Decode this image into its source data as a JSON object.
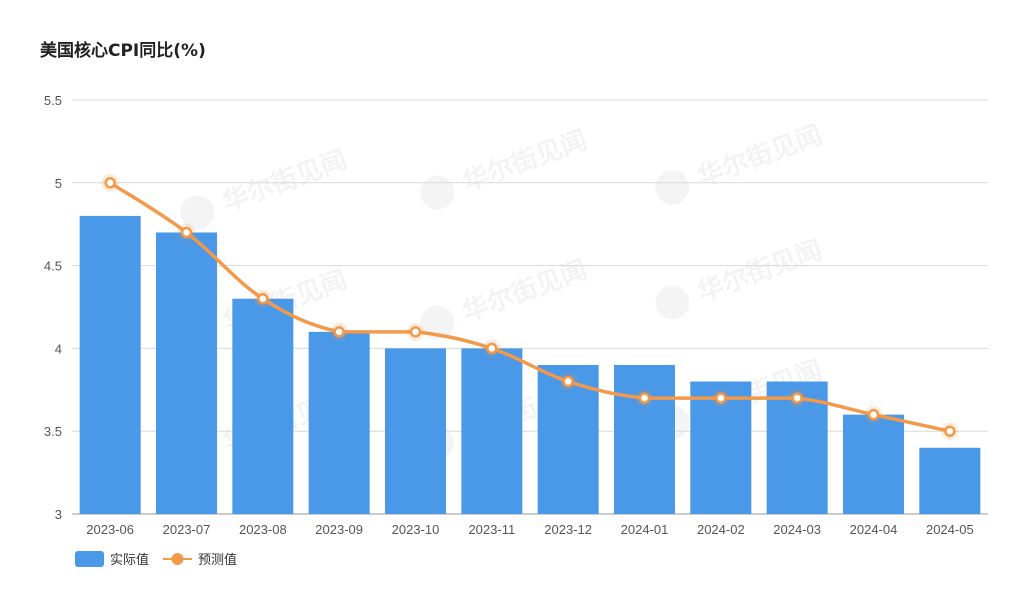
{
  "chart_data": {
    "type": "bar",
    "title": "美国核心CPI同比(%)",
    "xlabel": "",
    "ylabel": "",
    "categories": [
      "2023-06",
      "2023-07",
      "2023-08",
      "2023-09",
      "2023-10",
      "2023-11",
      "2023-12",
      "2024-01",
      "2024-02",
      "2024-03",
      "2024-04",
      "2024-05"
    ],
    "series": [
      {
        "name": "实际值",
        "type": "bar",
        "color": "#4A98E8",
        "values": [
          4.8,
          4.7,
          4.3,
          4.1,
          4.0,
          4.0,
          3.9,
          3.9,
          3.8,
          3.8,
          3.6,
          3.4
        ]
      },
      {
        "name": "预测值",
        "type": "line",
        "color": "#F2994A",
        "values": [
          5.0,
          4.7,
          4.3,
          4.1,
          4.1,
          4.0,
          3.8,
          3.7,
          3.7,
          3.7,
          3.6,
          3.5
        ]
      }
    ],
    "yticks": [
      "3",
      "3.5",
      "4",
      "4.5",
      "5",
      "5.5"
    ],
    "ylim": [
      3,
      5.5
    ],
    "grid": true,
    "legend_position": "bottom-left",
    "watermark": "华尔街见闻"
  }
}
